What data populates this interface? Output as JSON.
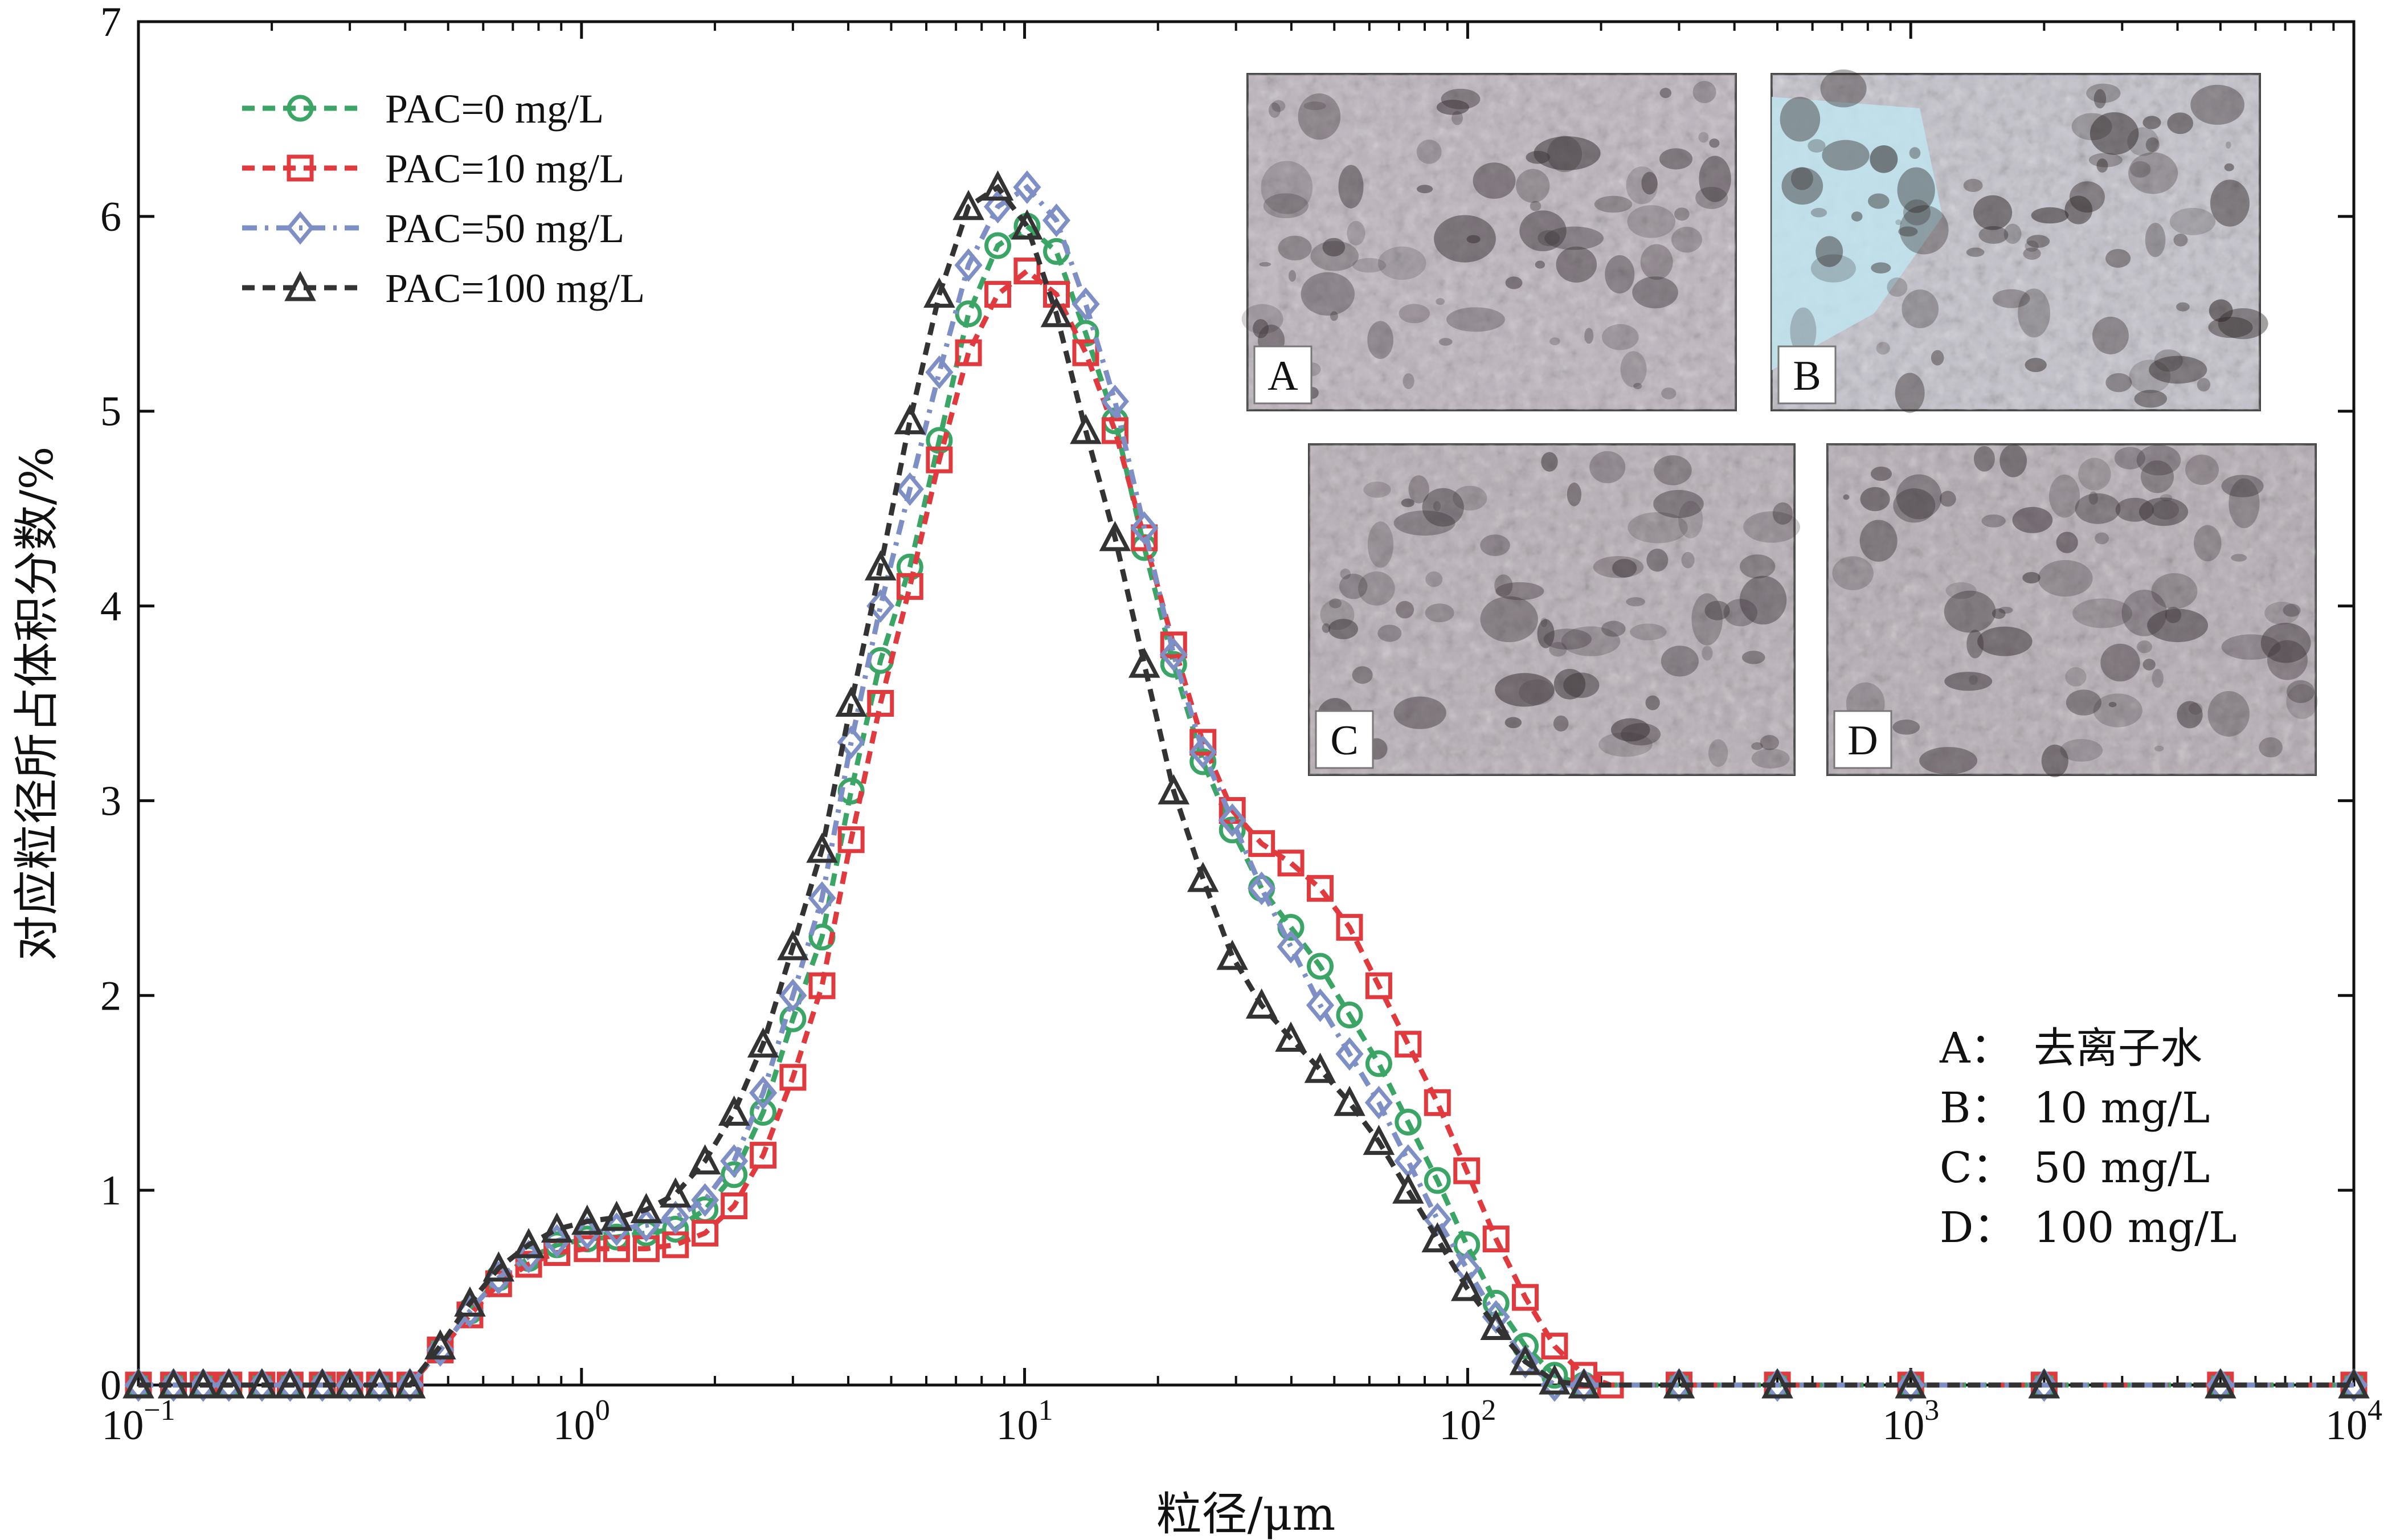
{
  "chart_data": {
    "type": "line",
    "title": "",
    "xlabel": "粒径/μm",
    "ylabel": "对应粒径所占体积分数/%",
    "xscale": "log",
    "xlim": [
      0.1,
      10000
    ],
    "ylim": [
      0,
      7
    ],
    "grid": false,
    "legend_position": "top-left",
    "x_tick_labels": [
      {
        "value": 0.1,
        "base": "10",
        "exp": "−1"
      },
      {
        "value": 1,
        "base": "10",
        "exp": "0"
      },
      {
        "value": 10,
        "base": "10",
        "exp": "1"
      },
      {
        "value": 100,
        "base": "10",
        "exp": "2"
      },
      {
        "value": 1000,
        "base": "10",
        "exp": "3"
      },
      {
        "value": 10000,
        "base": "10",
        "exp": "4"
      }
    ],
    "y_ticks": [
      0,
      1,
      2,
      3,
      4,
      5,
      6,
      7
    ],
    "series": [
      {
        "name": "PAC=0 mg/L",
        "color": "#3aa565",
        "marker": "circle",
        "dash": "dashed",
        "points": [
          [
            0.1,
            0
          ],
          [
            0.12,
            0
          ],
          [
            0.14,
            0
          ],
          [
            0.16,
            0
          ],
          [
            0.19,
            0
          ],
          [
            0.22,
            0
          ],
          [
            0.26,
            0
          ],
          [
            0.3,
            0
          ],
          [
            0.35,
            0
          ],
          [
            0.41,
            0
          ],
          [
            0.48,
            0.18
          ],
          [
            0.56,
            0.38
          ],
          [
            0.65,
            0.55
          ],
          [
            0.76,
            0.65
          ],
          [
            0.88,
            0.72
          ],
          [
            1.03,
            0.75
          ],
          [
            1.2,
            0.76
          ],
          [
            1.4,
            0.78
          ],
          [
            1.63,
            0.8
          ],
          [
            1.9,
            0.9
          ],
          [
            2.21,
            1.08
          ],
          [
            2.57,
            1.4
          ],
          [
            3,
            1.88
          ],
          [
            3.49,
            2.3
          ],
          [
            4.06,
            3.05
          ],
          [
            4.73,
            3.72
          ],
          [
            5.51,
            4.2
          ],
          [
            6.42,
            4.85
          ],
          [
            7.47,
            5.5
          ],
          [
            8.7,
            5.85
          ],
          [
            10.13,
            5.95
          ],
          [
            11.8,
            5.82
          ],
          [
            13.74,
            5.4
          ],
          [
            16,
            4.95
          ],
          [
            18.63,
            4.3
          ],
          [
            21.7,
            3.7
          ],
          [
            25.27,
            3.2
          ],
          [
            29.43,
            2.85
          ],
          [
            34.27,
            2.55
          ],
          [
            39.9,
            2.35
          ],
          [
            46.47,
            2.15
          ],
          [
            54.12,
            1.9
          ],
          [
            63.02,
            1.65
          ],
          [
            73.38,
            1.35
          ],
          [
            85.45,
            1.05
          ],
          [
            99.51,
            0.72
          ],
          [
            115.9,
            0.42
          ],
          [
            134.9,
            0.2
          ],
          [
            157.1,
            0.05
          ],
          [
            183,
            0
          ],
          [
            300,
            0
          ],
          [
            500,
            0
          ],
          [
            1000,
            0
          ],
          [
            2000,
            0
          ],
          [
            5000,
            0
          ],
          [
            10000,
            0
          ]
        ]
      },
      {
        "name": "PAC=10 mg/L",
        "color": "#e03a3e",
        "marker": "square",
        "dash": "dashed",
        "points": [
          [
            0.1,
            0
          ],
          [
            0.12,
            0
          ],
          [
            0.14,
            0
          ],
          [
            0.16,
            0
          ],
          [
            0.19,
            0
          ],
          [
            0.22,
            0
          ],
          [
            0.26,
            0
          ],
          [
            0.3,
            0
          ],
          [
            0.35,
            0
          ],
          [
            0.41,
            0
          ],
          [
            0.48,
            0.18
          ],
          [
            0.56,
            0.36
          ],
          [
            0.65,
            0.52
          ],
          [
            0.76,
            0.62
          ],
          [
            0.88,
            0.68
          ],
          [
            1.03,
            0.7
          ],
          [
            1.2,
            0.7
          ],
          [
            1.4,
            0.7
          ],
          [
            1.63,
            0.72
          ],
          [
            1.9,
            0.78
          ],
          [
            2.21,
            0.92
          ],
          [
            2.57,
            1.18
          ],
          [
            3,
            1.58
          ],
          [
            3.49,
            2.05
          ],
          [
            4.06,
            2.8
          ],
          [
            4.73,
            3.5
          ],
          [
            5.51,
            4.1
          ],
          [
            6.42,
            4.75
          ],
          [
            7.47,
            5.3
          ],
          [
            8.7,
            5.6
          ],
          [
            10.13,
            5.72
          ],
          [
            11.8,
            5.6
          ],
          [
            13.74,
            5.3
          ],
          [
            16,
            4.9
          ],
          [
            18.63,
            4.35
          ],
          [
            21.7,
            3.8
          ],
          [
            25.27,
            3.3
          ],
          [
            29.43,
            2.95
          ],
          [
            34.27,
            2.78
          ],
          [
            39.9,
            2.68
          ],
          [
            46.47,
            2.55
          ],
          [
            54.12,
            2.35
          ],
          [
            63.02,
            2.05
          ],
          [
            73.38,
            1.75
          ],
          [
            85.45,
            1.45
          ],
          [
            99.51,
            1.1
          ],
          [
            115.9,
            0.75
          ],
          [
            134.9,
            0.45
          ],
          [
            157.1,
            0.2
          ],
          [
            183,
            0.05
          ],
          [
            210,
            0
          ],
          [
            300,
            0
          ],
          [
            500,
            0
          ],
          [
            1000,
            0
          ],
          [
            2000,
            0
          ],
          [
            5000,
            0
          ],
          [
            10000,
            0
          ]
        ]
      },
      {
        "name": "PAC=50 mg/L",
        "color": "#7d8fc4",
        "marker": "diamond",
        "dash": "dashdot",
        "points": [
          [
            0.1,
            0
          ],
          [
            0.12,
            0
          ],
          [
            0.14,
            0
          ],
          [
            0.16,
            0
          ],
          [
            0.19,
            0
          ],
          [
            0.22,
            0
          ],
          [
            0.26,
            0
          ],
          [
            0.3,
            0
          ],
          [
            0.35,
            0
          ],
          [
            0.41,
            0
          ],
          [
            0.48,
            0.18
          ],
          [
            0.56,
            0.38
          ],
          [
            0.65,
            0.55
          ],
          [
            0.76,
            0.66
          ],
          [
            0.88,
            0.74
          ],
          [
            1.03,
            0.78
          ],
          [
            1.2,
            0.8
          ],
          [
            1.4,
            0.82
          ],
          [
            1.63,
            0.86
          ],
          [
            1.9,
            0.95
          ],
          [
            2.21,
            1.15
          ],
          [
            2.57,
            1.5
          ],
          [
            3,
            2.0
          ],
          [
            3.49,
            2.5
          ],
          [
            4.06,
            3.3
          ],
          [
            4.73,
            4.0
          ],
          [
            5.51,
            4.6
          ],
          [
            6.42,
            5.2
          ],
          [
            7.47,
            5.75
          ],
          [
            8.7,
            6.05
          ],
          [
            10.13,
            6.15
          ],
          [
            11.8,
            5.98
          ],
          [
            13.74,
            5.55
          ],
          [
            16,
            5.05
          ],
          [
            18.63,
            4.4
          ],
          [
            21.7,
            3.75
          ],
          [
            25.27,
            3.25
          ],
          [
            29.43,
            2.9
          ],
          [
            34.27,
            2.55
          ],
          [
            39.9,
            2.25
          ],
          [
            46.47,
            1.95
          ],
          [
            54.12,
            1.7
          ],
          [
            63.02,
            1.45
          ],
          [
            73.38,
            1.15
          ],
          [
            85.45,
            0.85
          ],
          [
            99.51,
            0.6
          ],
          [
            115.9,
            0.35
          ],
          [
            134.9,
            0.12
          ],
          [
            157.1,
            0
          ],
          [
            183,
            0
          ],
          [
            300,
            0
          ],
          [
            500,
            0
          ],
          [
            1000,
            0
          ],
          [
            2000,
            0
          ],
          [
            5000,
            0
          ],
          [
            10000,
            0
          ]
        ]
      },
      {
        "name": "PAC=100 mg/L",
        "color": "#333333",
        "marker": "triangle",
        "dash": "dashed",
        "points": [
          [
            0.1,
            0
          ],
          [
            0.12,
            0
          ],
          [
            0.14,
            0
          ],
          [
            0.16,
            0
          ],
          [
            0.19,
            0
          ],
          [
            0.22,
            0
          ],
          [
            0.26,
            0
          ],
          [
            0.3,
            0
          ],
          [
            0.35,
            0
          ],
          [
            0.41,
            0
          ],
          [
            0.48,
            0.2
          ],
          [
            0.56,
            0.42
          ],
          [
            0.65,
            0.6
          ],
          [
            0.76,
            0.72
          ],
          [
            0.88,
            0.8
          ],
          [
            1.03,
            0.84
          ],
          [
            1.2,
            0.86
          ],
          [
            1.4,
            0.9
          ],
          [
            1.63,
            0.98
          ],
          [
            1.9,
            1.15
          ],
          [
            2.21,
            1.4
          ],
          [
            2.57,
            1.75
          ],
          [
            3,
            2.25
          ],
          [
            3.49,
            2.75
          ],
          [
            4.06,
            3.5
          ],
          [
            4.73,
            4.2
          ],
          [
            5.51,
            4.95
          ],
          [
            6.42,
            5.6
          ],
          [
            7.47,
            6.05
          ],
          [
            8.7,
            6.15
          ],
          [
            10.13,
            5.95
          ],
          [
            11.8,
            5.5
          ],
          [
            13.74,
            4.9
          ],
          [
            16,
            4.35
          ],
          [
            18.63,
            3.7
          ],
          [
            21.7,
            3.05
          ],
          [
            25.27,
            2.6
          ],
          [
            29.43,
            2.2
          ],
          [
            34.27,
            1.95
          ],
          [
            39.9,
            1.78
          ],
          [
            46.47,
            1.62
          ],
          [
            54.12,
            1.45
          ],
          [
            63.02,
            1.25
          ],
          [
            73.38,
            1.0
          ],
          [
            85.45,
            0.75
          ],
          [
            99.51,
            0.5
          ],
          [
            115.9,
            0.3
          ],
          [
            134.9,
            0.12
          ],
          [
            157.1,
            0.02
          ],
          [
            183,
            0
          ],
          [
            300,
            0
          ],
          [
            500,
            0
          ],
          [
            1000,
            0
          ],
          [
            2000,
            0
          ],
          [
            5000,
            0
          ],
          [
            10000,
            0
          ]
        ]
      }
    ],
    "inset_photos": [
      {
        "label": "A",
        "tone": "#bdb4bd",
        "dark": "#3c3438"
      },
      {
        "label": "B",
        "tone": "#c4c2cc",
        "dark": "#2e2626",
        "highlight": "#bfe4ee"
      },
      {
        "label": "C",
        "tone": "#b7aeb6",
        "dark": "#3a3236"
      },
      {
        "label": "D",
        "tone": "#b5acb4",
        "dark": "#383034"
      }
    ],
    "annotation": [
      {
        "key": "A：",
        "text": "去离子水"
      },
      {
        "key": "B：",
        "text": "10 mg/L"
      },
      {
        "key": "C：",
        "text": "50 mg/L"
      },
      {
        "key": "D：",
        "text": "100 mg/L"
      }
    ]
  }
}
